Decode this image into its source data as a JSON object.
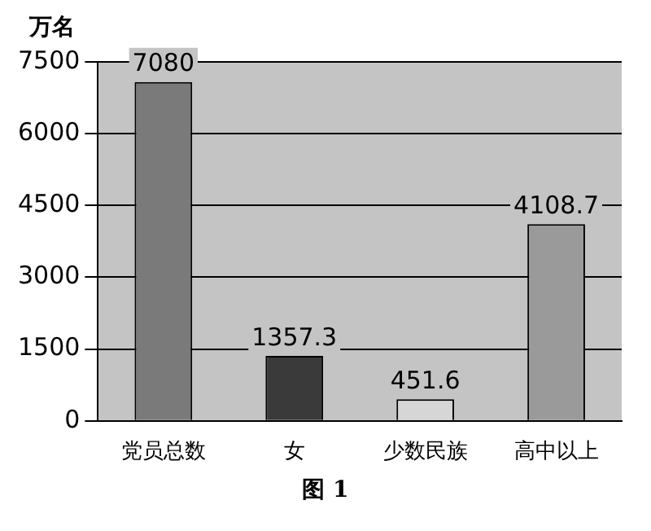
{
  "chart_data": {
    "type": "bar",
    "ylabel": "万名",
    "categories": [
      "党员总数",
      "女",
      "少数民族",
      "高中以上"
    ],
    "values": [
      7080,
      1357.3,
      451.6,
      4108.7
    ],
    "colors": [
      "#7a7a7a",
      "#3a3a3a",
      "#d6d6d6",
      "#9a9a9a"
    ],
    "ylim": [
      0,
      7500
    ],
    "yticks": [
      0,
      1500,
      3000,
      4500,
      6000,
      7500
    ],
    "grid": "y",
    "data_labels": true,
    "annotations": [
      "图 1"
    ]
  }
}
